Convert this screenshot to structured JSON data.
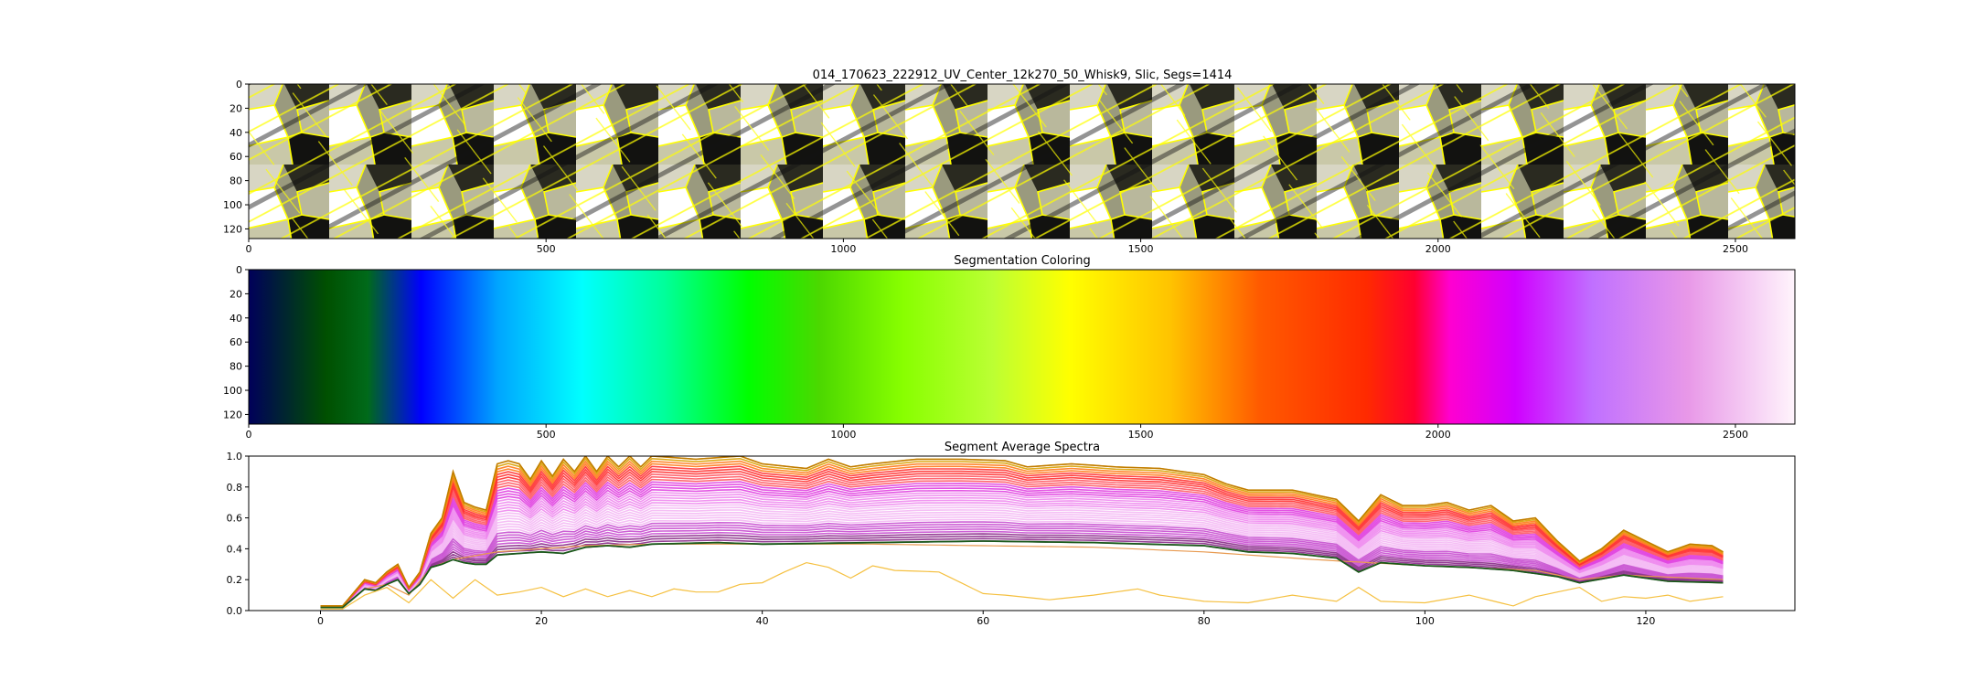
{
  "chart_data": [
    {
      "type": "heatmap",
      "title": "014_170623_222912_UV_Center_12k270_50_Whisk9, Slic, Segs=1414",
      "x_range": [
        0,
        2600
      ],
      "y_range": [
        0,
        128
      ],
      "y_inverted": true,
      "x_ticks": [
        0,
        500,
        1000,
        1500,
        2000,
        2500
      ],
      "y_ticks": [
        0,
        20,
        40,
        60,
        80,
        100,
        120
      ],
      "segment_boundary_color": "#ffff00"
    },
    {
      "type": "heatmap",
      "title": "Segmentation Coloring",
      "x_range": [
        0,
        2600
      ],
      "y_range": [
        0,
        128
      ],
      "y_inverted": true,
      "x_ticks": [
        0,
        500,
        1000,
        1500,
        2000,
        2500
      ],
      "y_ticks": [
        0,
        20,
        40,
        60,
        80,
        100,
        120
      ],
      "colormap": "gist_ncar",
      "gradient_stops": [
        {
          "x": 0,
          "color": "#00005a"
        },
        {
          "x": 130,
          "color": "#005000"
        },
        {
          "x": 200,
          "color": "#006a1a"
        },
        {
          "x": 290,
          "color": "#0000ff"
        },
        {
          "x": 420,
          "color": "#00a6ff"
        },
        {
          "x": 560,
          "color": "#00ffff"
        },
        {
          "x": 700,
          "color": "#00ff9a"
        },
        {
          "x": 840,
          "color": "#00ff00"
        },
        {
          "x": 960,
          "color": "#4cd800"
        },
        {
          "x": 1100,
          "color": "#88ff00"
        },
        {
          "x": 1250,
          "color": "#bbff33"
        },
        {
          "x": 1380,
          "color": "#ffff00"
        },
        {
          "x": 1550,
          "color": "#ffc300"
        },
        {
          "x": 1700,
          "color": "#ff5a00"
        },
        {
          "x": 1880,
          "color": "#ff2a00"
        },
        {
          "x": 1960,
          "color": "#ff0030"
        },
        {
          "x": 2020,
          "color": "#ff00d0"
        },
        {
          "x": 2130,
          "color": "#d000ff"
        },
        {
          "x": 2260,
          "color": "#c070ff"
        },
        {
          "x": 2420,
          "color": "#e898e8"
        },
        {
          "x": 2600,
          "color": "#fff4fc"
        }
      ]
    },
    {
      "type": "line",
      "title": "Segment Average Spectra",
      "xlim": [
        -6.5,
        133.5
      ],
      "ylim": [
        0,
        1.0
      ],
      "x_ticks": [
        0,
        20,
        40,
        60,
        80,
        100,
        120
      ],
      "y_ticks": [
        0.0,
        0.2,
        0.4,
        0.6,
        0.8,
        1.0
      ],
      "x_tick_labels": [
        "0",
        "20",
        "40",
        "60",
        "80",
        "100",
        "120"
      ],
      "y_tick_labels": [
        "0.0",
        "0.2",
        "0.4",
        "0.6",
        "0.8",
        "1.0"
      ],
      "x_start": 0,
      "x_end": 127,
      "upper_envelope": [
        [
          0,
          0.03
        ],
        [
          2,
          0.03
        ],
        [
          4,
          0.2
        ],
        [
          5,
          0.18
        ],
        [
          6,
          0.25
        ],
        [
          7,
          0.3
        ],
        [
          8,
          0.15
        ],
        [
          9,
          0.25
        ],
        [
          10,
          0.5
        ],
        [
          11,
          0.6
        ],
        [
          12,
          0.9
        ],
        [
          13,
          0.7
        ],
        [
          14,
          0.67
        ],
        [
          15,
          0.65
        ],
        [
          16,
          0.95
        ],
        [
          17,
          0.97
        ],
        [
          18,
          0.95
        ],
        [
          19,
          0.85
        ],
        [
          20,
          0.97
        ],
        [
          21,
          0.87
        ],
        [
          22,
          0.98
        ],
        [
          23,
          0.9
        ],
        [
          24,
          1.0
        ],
        [
          25,
          0.9
        ],
        [
          26,
          1.0
        ],
        [
          27,
          0.93
        ],
        [
          28,
          1.0
        ],
        [
          29,
          0.93
        ],
        [
          30,
          1.0
        ],
        [
          34,
          0.98
        ],
        [
          38,
          1.0
        ],
        [
          40,
          0.95
        ],
        [
          44,
          0.92
        ],
        [
          46,
          0.98
        ],
        [
          48,
          0.93
        ],
        [
          50,
          0.95
        ],
        [
          54,
          0.98
        ],
        [
          58,
          0.98
        ],
        [
          62,
          0.97
        ],
        [
          64,
          0.93
        ],
        [
          68,
          0.95
        ],
        [
          72,
          0.93
        ],
        [
          76,
          0.92
        ],
        [
          80,
          0.88
        ],
        [
          82,
          0.82
        ],
        [
          84,
          0.78
        ],
        [
          88,
          0.78
        ],
        [
          90,
          0.75
        ],
        [
          92,
          0.72
        ],
        [
          94,
          0.58
        ],
        [
          96,
          0.75
        ],
        [
          98,
          0.68
        ],
        [
          100,
          0.68
        ],
        [
          102,
          0.7
        ],
        [
          104,
          0.65
        ],
        [
          106,
          0.68
        ],
        [
          108,
          0.58
        ],
        [
          110,
          0.6
        ],
        [
          112,
          0.45
        ],
        [
          114,
          0.32
        ],
        [
          116,
          0.4
        ],
        [
          118,
          0.52
        ],
        [
          120,
          0.45
        ],
        [
          122,
          0.38
        ],
        [
          124,
          0.43
        ],
        [
          126,
          0.42
        ],
        [
          127,
          0.38
        ]
      ],
      "dark_green_line": [
        [
          0,
          0.02
        ],
        [
          2,
          0.02
        ],
        [
          4,
          0.14
        ],
        [
          5,
          0.13
        ],
        [
          6,
          0.17
        ],
        [
          7,
          0.2
        ],
        [
          8,
          0.11
        ],
        [
          9,
          0.17
        ],
        [
          10,
          0.28
        ],
        [
          11,
          0.3
        ],
        [
          12,
          0.33
        ],
        [
          13,
          0.31
        ],
        [
          14,
          0.3
        ],
        [
          15,
          0.3
        ],
        [
          16,
          0.36
        ],
        [
          18,
          0.37
        ],
        [
          20,
          0.38
        ],
        [
          22,
          0.37
        ],
        [
          24,
          0.41
        ],
        [
          26,
          0.42
        ],
        [
          28,
          0.41
        ],
        [
          30,
          0.43
        ],
        [
          36,
          0.44
        ],
        [
          40,
          0.43
        ],
        [
          50,
          0.44
        ],
        [
          60,
          0.45
        ],
        [
          70,
          0.44
        ],
        [
          80,
          0.42
        ],
        [
          84,
          0.38
        ],
        [
          88,
          0.37
        ],
        [
          92,
          0.34
        ],
        [
          94,
          0.25
        ],
        [
          96,
          0.31
        ],
        [
          100,
          0.29
        ],
        [
          104,
          0.28
        ],
        [
          108,
          0.26
        ],
        [
          112,
          0.22
        ],
        [
          114,
          0.18
        ],
        [
          118,
          0.23
        ],
        [
          122,
          0.19
        ],
        [
          127,
          0.18
        ]
      ],
      "orange_line": [
        [
          0,
          0.02
        ],
        [
          2,
          0.02
        ],
        [
          4,
          0.14
        ],
        [
          6,
          0.17
        ],
        [
          8,
          0.1
        ],
        [
          10,
          0.28
        ],
        [
          12,
          0.33
        ],
        [
          16,
          0.38
        ],
        [
          20,
          0.4
        ],
        [
          24,
          0.42
        ],
        [
          30,
          0.43
        ],
        [
          40,
          0.43
        ],
        [
          50,
          0.43
        ],
        [
          60,
          0.42
        ],
        [
          70,
          0.41
        ],
        [
          80,
          0.38
        ],
        [
          90,
          0.33
        ],
        [
          100,
          0.29
        ],
        [
          110,
          0.26
        ],
        [
          114,
          0.2
        ],
        [
          118,
          0.23
        ],
        [
          127,
          0.2
        ]
      ],
      "low_line": [
        [
          0,
          0.01
        ],
        [
          2,
          0.01
        ],
        [
          4,
          0.1
        ],
        [
          6,
          0.15
        ],
        [
          8,
          0.05
        ],
        [
          10,
          0.2
        ],
        [
          12,
          0.08
        ],
        [
          14,
          0.2
        ],
        [
          16,
          0.1
        ],
        [
          18,
          0.12
        ],
        [
          20,
          0.15
        ],
        [
          22,
          0.09
        ],
        [
          24,
          0.14
        ],
        [
          26,
          0.09
        ],
        [
          28,
          0.13
        ],
        [
          30,
          0.09
        ],
        [
          32,
          0.14
        ],
        [
          34,
          0.12
        ],
        [
          36,
          0.12
        ],
        [
          38,
          0.17
        ],
        [
          40,
          0.18
        ],
        [
          42,
          0.25
        ],
        [
          44,
          0.31
        ],
        [
          46,
          0.28
        ],
        [
          48,
          0.21
        ],
        [
          50,
          0.29
        ],
        [
          52,
          0.26
        ],
        [
          56,
          0.25
        ],
        [
          58,
          0.18
        ],
        [
          60,
          0.11
        ],
        [
          62,
          0.1
        ],
        [
          66,
          0.07
        ],
        [
          70,
          0.1
        ],
        [
          74,
          0.14
        ],
        [
          76,
          0.1
        ],
        [
          80,
          0.06
        ],
        [
          84,
          0.05
        ],
        [
          88,
          0.1
        ],
        [
          92,
          0.06
        ],
        [
          94,
          0.15
        ],
        [
          96,
          0.06
        ],
        [
          100,
          0.05
        ],
        [
          104,
          0.1
        ],
        [
          108,
          0.03
        ],
        [
          110,
          0.09
        ],
        [
          112,
          0.12
        ],
        [
          114,
          0.15
        ],
        [
          116,
          0.06
        ],
        [
          118,
          0.09
        ],
        [
          120,
          0.08
        ],
        [
          122,
          0.1
        ],
        [
          124,
          0.06
        ],
        [
          127,
          0.09
        ]
      ]
    }
  ]
}
